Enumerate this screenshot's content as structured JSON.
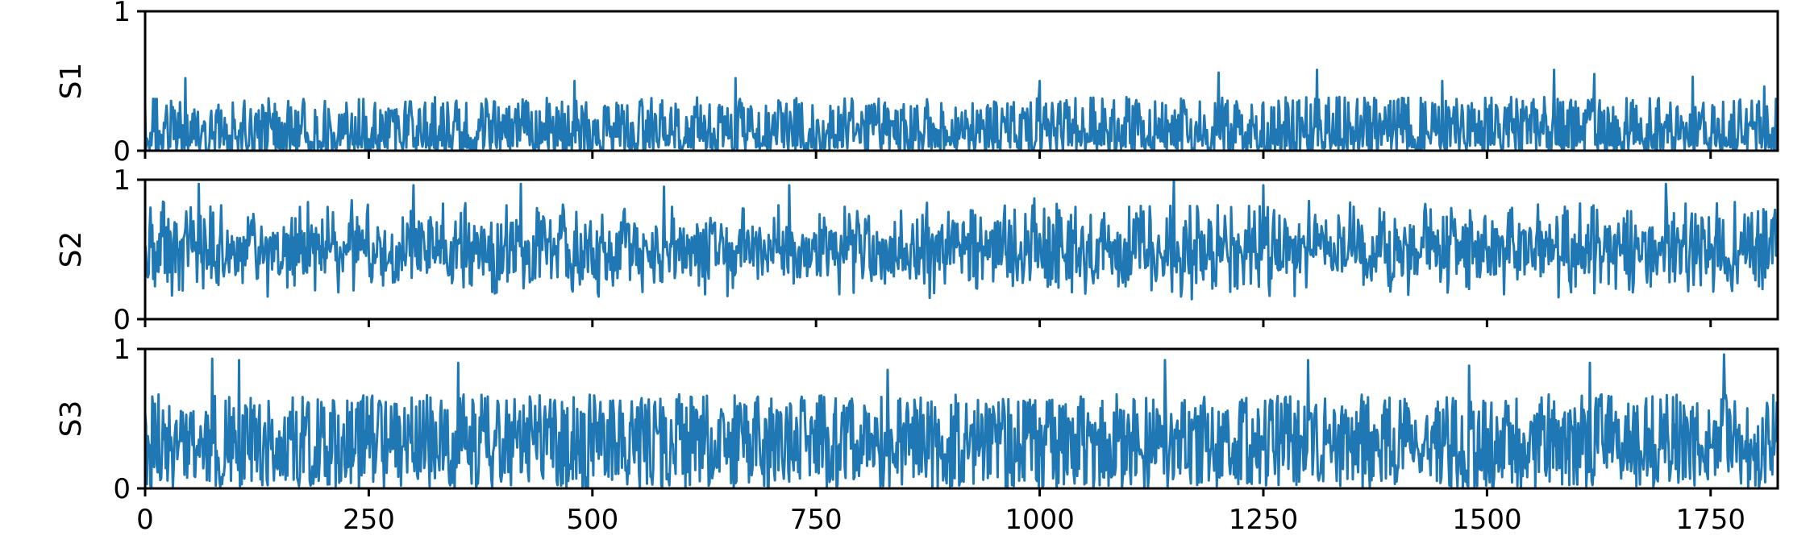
{
  "chart_data": {
    "type": "line",
    "layout": "stacked-subplots-shared-x",
    "line_color": "#1f77b4",
    "xlim": [
      0,
      1825
    ],
    "xticks": [
      0,
      250,
      500,
      750,
      1000,
      1250,
      1500,
      1750
    ],
    "x_tick_labels_on": "bottom",
    "grid": false,
    "n_points": 1825,
    "panels": [
      {
        "ylabel": "S1",
        "ylim": [
          0,
          1
        ],
        "yticks": [
          0,
          1
        ],
        "series_summary": {
          "typical_min": 0.0,
          "typical_max": 0.35,
          "peak_max": 0.58,
          "mean": 0.15
        },
        "notable_peaks": [
          [
            45,
            0.52
          ],
          [
            480,
            0.5
          ],
          [
            660,
            0.52
          ],
          [
            1000,
            0.5
          ],
          [
            1200,
            0.56
          ],
          [
            1310,
            0.58
          ],
          [
            1450,
            0.5
          ],
          [
            1575,
            0.58
          ],
          [
            1620,
            0.55
          ],
          [
            1730,
            0.53
          ],
          [
            1810,
            0.46
          ]
        ]
      },
      {
        "ylabel": "S2",
        "ylim": [
          0,
          1
        ],
        "yticks": [
          0,
          1
        ],
        "series_summary": {
          "typical_min": 0.15,
          "typical_max": 0.85,
          "peak_max": 1.0,
          "mean": 0.5
        },
        "notable_peaks": [
          [
            60,
            0.97
          ],
          [
            300,
            0.96
          ],
          [
            420,
            0.97
          ],
          [
            580,
            0.95
          ],
          [
            720,
            0.96
          ],
          [
            1150,
            1.0
          ],
          [
            1250,
            0.96
          ],
          [
            1700,
            0.97
          ]
        ]
      },
      {
        "ylabel": "S3",
        "ylim": [
          0,
          1
        ],
        "yticks": [
          0,
          1
        ],
        "series_summary": {
          "typical_min": 0.0,
          "typical_max": 0.75,
          "peak_max": 0.96,
          "mean": 0.35
        },
        "notable_peaks": [
          [
            75,
            0.93
          ],
          [
            105,
            0.92
          ],
          [
            350,
            0.9
          ],
          [
            830,
            0.85
          ],
          [
            1140,
            0.92
          ],
          [
            1300,
            0.92
          ],
          [
            1480,
            0.88
          ],
          [
            1615,
            0.9
          ],
          [
            1765,
            0.96
          ]
        ]
      }
    ]
  }
}
